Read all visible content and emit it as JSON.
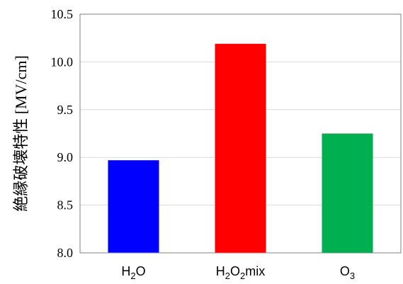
{
  "chart_data": {
    "type": "bar",
    "categories": [
      {
        "id": "h2o",
        "parts": [
          [
            "H",
            ""
          ],
          [
            "2",
            "sub"
          ],
          [
            "O",
            ""
          ]
        ]
      },
      {
        "id": "h2o2mix",
        "parts": [
          [
            "H",
            ""
          ],
          [
            "2",
            "sub"
          ],
          [
            "O",
            ""
          ],
          [
            "2",
            "sub"
          ],
          [
            "mix",
            ""
          ]
        ]
      },
      {
        "id": "o3",
        "parts": [
          [
            "O",
            ""
          ],
          [
            "3",
            "sub"
          ]
        ]
      }
    ],
    "values": [
      8.97,
      10.19,
      9.25
    ],
    "colors": [
      "#0000ff",
      "#ff0000",
      "#00b050"
    ],
    "ylabel": "絶縁破壊特性 [MV/cm]",
    "ylim": [
      8.0,
      10.5
    ],
    "yticks": [
      "8.0",
      "8.5",
      "9.0",
      "9.5",
      "10.0",
      "10.5"
    ],
    "grid": true,
    "legend": "none"
  }
}
